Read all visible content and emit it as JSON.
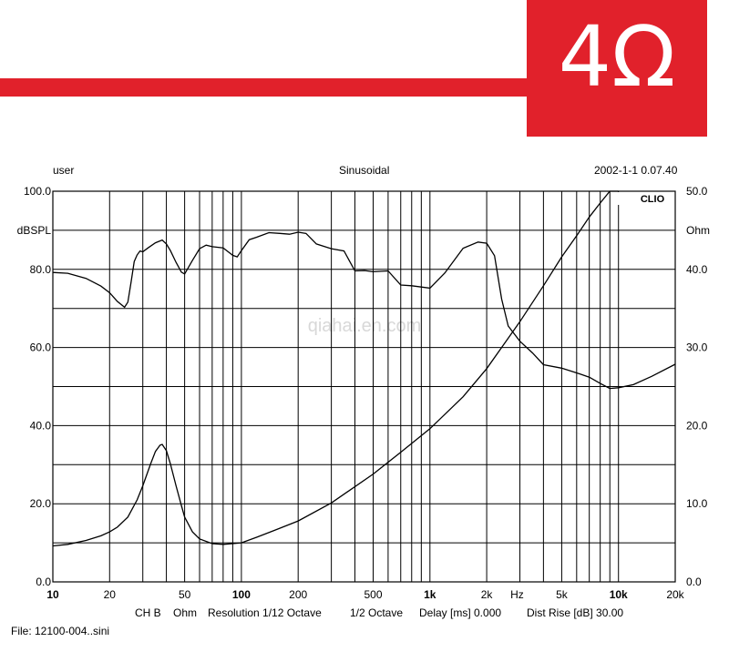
{
  "colors": {
    "brand": "#e1212b"
  },
  "badge": {
    "text": "4Ω"
  },
  "watermark": "qiahai.en.com",
  "header": {
    "left": "user",
    "center": "Sinusoidal",
    "right": "2002-1-1 0.07.40"
  },
  "footer": {
    "line1_a": "CH B",
    "line1_b": "Ohm",
    "line1_c": "Resolution 1/12 Octave",
    "line1_d": "1/2 Octave",
    "line1_e": "Delay [ms] 0.000",
    "line1_f": "Dist Rise [dB] 30.00",
    "line2": "File: 12100-004..sini"
  },
  "chart_data": {
    "type": "line",
    "x_scale": "log",
    "xlim": [
      10,
      20000
    ],
    "grid": true,
    "brand_tag": "CLIO",
    "x_unit": "Hz",
    "left_axis": {
      "label": "dBSPL",
      "ylim": [
        0,
        100
      ],
      "ticks": [
        "0.0",
        "20.0",
        "40.0",
        "60.0",
        "80.0",
        "100.0"
      ]
    },
    "right_axis": {
      "label": "Ohm",
      "ylim": [
        0,
        50
      ],
      "ticks": [
        "0.0",
        "10.0",
        "20.0",
        "30.0",
        "40.0",
        "50.0"
      ]
    },
    "x_ticks": [
      {
        "v": 10,
        "label": "10",
        "bold": true
      },
      {
        "v": 20,
        "label": "20"
      },
      {
        "v": 50,
        "label": "50"
      },
      {
        "v": 100,
        "label": "100",
        "bold": true
      },
      {
        "v": 200,
        "label": "200"
      },
      {
        "v": 500,
        "label": "500"
      },
      {
        "v": 1000,
        "label": "1k",
        "bold": true
      },
      {
        "v": 2000,
        "label": "2k"
      },
      {
        "v": 5000,
        "label": "5k"
      },
      {
        "v": 10000,
        "label": "10k",
        "bold": true
      },
      {
        "v": 20000,
        "label": "20k"
      }
    ],
    "series": [
      {
        "axis": "left",
        "x": [
          10,
          12,
          15,
          18,
          20,
          22,
          24,
          25,
          26,
          27,
          28,
          29,
          30,
          32,
          35,
          38,
          40,
          42,
          45,
          48,
          50,
          55,
          60,
          65,
          70,
          80,
          90,
          95,
          100,
          110,
          120,
          140,
          160,
          180,
          200,
          220,
          250,
          300,
          350,
          400,
          450,
          500,
          600,
          700,
          800,
          1000,
          1200,
          1500,
          1800,
          2000,
          2200,
          2400,
          2600,
          3000,
          3500,
          4000,
          5000,
          6000,
          7000,
          8000,
          9000,
          10000,
          12000,
          15000,
          20000
        ],
        "y": [
          79.2,
          79.0,
          77.7,
          75.7,
          74.0,
          71.8,
          70.3,
          71.6,
          76.8,
          82.0,
          83.7,
          84.7,
          84.5,
          85.5,
          86.8,
          87.5,
          86.5,
          84.8,
          81.8,
          79.3,
          78.8,
          82.3,
          85.3,
          86.2,
          85.8,
          85.5,
          83.6,
          83.2,
          84.8,
          87.6,
          88.2,
          89.4,
          89.2,
          89.0,
          89.5,
          89.2,
          86.5,
          85.3,
          84.7,
          79.6,
          79.7,
          79.4,
          79.6,
          76.0,
          75.8,
          75.2,
          79.1,
          85.4,
          87.0,
          86.7,
          83.5,
          72.4,
          65.5,
          61.6,
          58.6,
          55.6,
          54.7,
          53.5,
          52.4,
          50.8,
          49.5,
          49.7,
          50.5,
          52.6,
          55.7
        ]
      },
      {
        "axis": "right",
        "x": [
          10,
          12,
          15,
          18,
          20,
          22,
          25,
          28,
          30,
          33,
          35,
          37,
          38,
          40,
          42,
          45,
          48,
          50,
          55,
          60,
          70,
          80,
          90,
          100,
          120,
          150,
          200,
          300,
          500,
          700,
          1000,
          1500,
          2000,
          3000,
          4000,
          5000,
          6000,
          7000,
          8000,
          9000,
          10000
        ],
        "y": [
          4.6,
          4.8,
          5.3,
          5.9,
          6.4,
          7.0,
          8.3,
          10.5,
          12.3,
          15.1,
          16.7,
          17.5,
          17.6,
          16.8,
          15.1,
          12.3,
          9.8,
          8.3,
          6.4,
          5.5,
          4.9,
          4.8,
          4.9,
          5.0,
          5.7,
          6.6,
          7.8,
          10.1,
          13.8,
          16.6,
          19.6,
          23.7,
          27.3,
          33.3,
          37.9,
          41.6,
          44.3,
          46.7,
          48.5,
          50.0,
          50.0
        ]
      }
    ]
  }
}
